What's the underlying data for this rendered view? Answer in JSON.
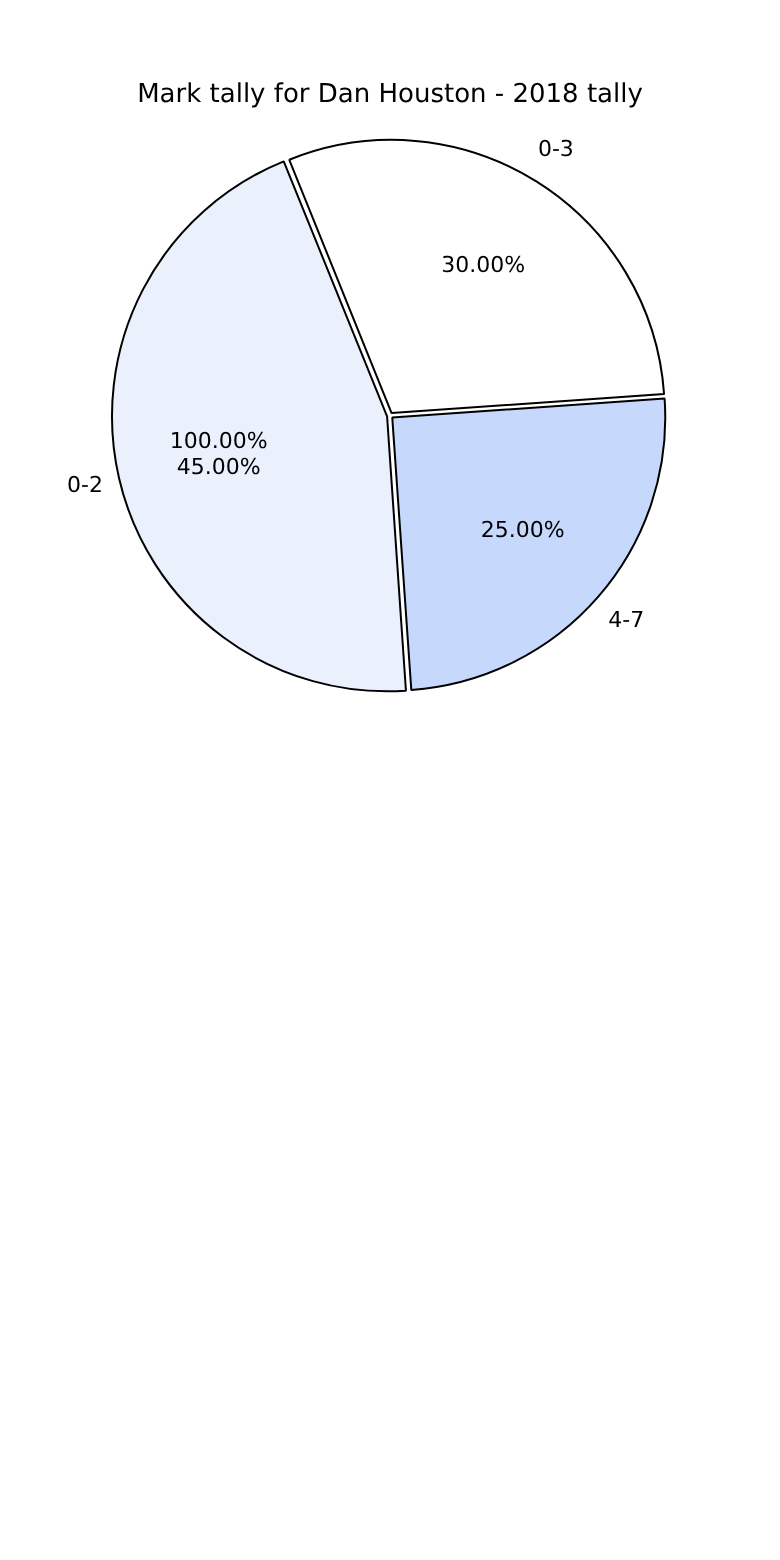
{
  "chart_data": {
    "type": "pie",
    "title": "Mark tally for Dan Houston - 2018 tally",
    "categories": [
      "0-3",
      "4-7",
      "0-2"
    ],
    "values": [
      30,
      25,
      45
    ],
    "colors": [
      "#ffffff",
      "#c6d9fd",
      "#eaf1fd"
    ],
    "value_labels": [
      "30.00%",
      "25.00%",
      "45.00%"
    ],
    "annotations": [
      "100.00%"
    ],
    "legend": false
  }
}
